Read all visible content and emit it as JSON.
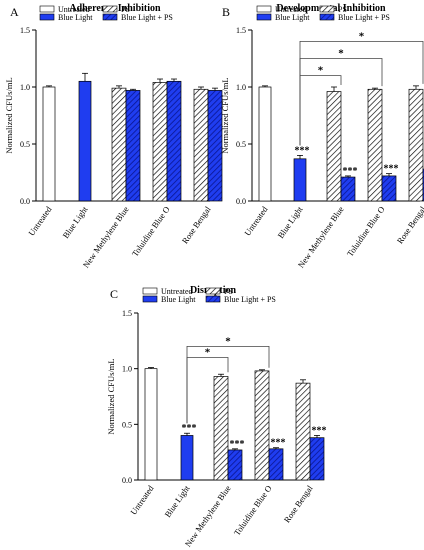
{
  "legend_labels": {
    "untreated": "Untreated",
    "ps": "PS",
    "blue_light": "Blue Light",
    "blue_light_ps": "Blue Light + PS"
  },
  "colors": {
    "untreated_fill": "#ffffff",
    "blue_fill": "#1f3df0",
    "dark_blue": "#0d1fa8",
    "stroke": "#000000"
  },
  "chart_data": [
    {
      "panel_label": "A",
      "type": "bar",
      "title": "Adherence Inhibition",
      "ylabel": "Normalized CFUs/mL",
      "ylim": [
        0,
        1.5
      ],
      "yticks": [
        "0.0",
        "0.5",
        "1.0",
        "1.5"
      ],
      "categories": [
        "Untreated",
        "Blue Light",
        "New Methylene Blue",
        "Toluidine Blue O",
        "Rose Bengal"
      ],
      "series": [
        {
          "name": "Untreated",
          "values": [
            1.0,
            null,
            null,
            null,
            null
          ],
          "errors": [
            0.01,
            null,
            null,
            null,
            null
          ]
        },
        {
          "name": "Blue Light",
          "values": [
            null,
            1.05,
            null,
            null,
            null
          ],
          "errors": [
            null,
            0.07,
            null,
            null,
            null
          ]
        },
        {
          "name": "PS",
          "values": [
            null,
            null,
            0.99,
            1.04,
            0.98
          ],
          "errors": [
            null,
            null,
            0.02,
            0.03,
            0.02
          ]
        },
        {
          "name": "Blue Light + PS",
          "values": [
            null,
            null,
            0.97,
            1.05,
            0.97
          ],
          "errors": [
            null,
            null,
            0.01,
            0.02,
            0.02
          ]
        }
      ],
      "stars": [],
      "brackets": []
    },
    {
      "panel_label": "B",
      "type": "bar",
      "title": "Developmental Inhibition",
      "ylabel": "Normalized CFUs/mL",
      "ylim": [
        0,
        1.5
      ],
      "yticks": [
        "0.0",
        "0.5",
        "1.0",
        "1.5"
      ],
      "categories": [
        "Untreated",
        "Blue Light",
        "New Methylene Blue",
        "Toluidine Blue O",
        "Rose Bengal"
      ],
      "series": [
        {
          "name": "Untreated",
          "values": [
            1.0,
            null,
            null,
            null,
            null
          ],
          "errors": [
            0.01,
            null,
            null,
            null,
            null
          ]
        },
        {
          "name": "Blue Light",
          "values": [
            null,
            0.37,
            null,
            null,
            null
          ],
          "errors": [
            null,
            0.03,
            null,
            null,
            null
          ]
        },
        {
          "name": "PS",
          "values": [
            null,
            null,
            0.96,
            0.98,
            0.98
          ],
          "errors": [
            null,
            null,
            0.04,
            0.01,
            0.03
          ]
        },
        {
          "name": "Blue Light + PS",
          "values": [
            null,
            null,
            0.21,
            0.22,
            0.28
          ],
          "errors": [
            null,
            null,
            0.01,
            0.02,
            0.02
          ]
        }
      ],
      "stars": [
        {
          "category": "Blue Light",
          "series": "Blue Light",
          "text": "***"
        },
        {
          "category": "New Methylene Blue",
          "series": "Blue Light + PS",
          "text": "***"
        },
        {
          "category": "Toluidine Blue O",
          "series": "Blue Light + PS",
          "text": "***"
        },
        {
          "category": "Rose Bengal",
          "series": "Blue Light + PS",
          "text": "***"
        }
      ],
      "brackets": [
        {
          "from": "Blue Light",
          "to": "New Methylene Blue",
          "at": 1.1,
          "text": "*"
        },
        {
          "from": "Blue Light",
          "to": "Toluidine Blue O",
          "at": 1.25,
          "text": "*"
        },
        {
          "from": "Blue Light",
          "to": "Rose Bengal",
          "at": 1.4,
          "text": "*"
        }
      ]
    },
    {
      "panel_label": "C",
      "type": "bar",
      "title": "Disruption",
      "ylabel": "Normalized CFUs/mL",
      "ylim": [
        0,
        1.5
      ],
      "yticks": [
        "0.0",
        "0.5",
        "1.0",
        "1.5"
      ],
      "categories": [
        "Untreated",
        "Blue Light",
        "New Methylene Blue",
        "Toluidine Blue O",
        "Rose Bengal"
      ],
      "series": [
        {
          "name": "Untreated",
          "values": [
            1.0,
            null,
            null,
            null,
            null
          ],
          "errors": [
            0.01,
            null,
            null,
            null,
            null
          ]
        },
        {
          "name": "Blue Light",
          "values": [
            null,
            0.4,
            null,
            null,
            null
          ],
          "errors": [
            null,
            0.02,
            null,
            null,
            null
          ]
        },
        {
          "name": "PS",
          "values": [
            null,
            null,
            0.93,
            0.98,
            0.87
          ],
          "errors": [
            null,
            null,
            0.02,
            0.01,
            0.03
          ]
        },
        {
          "name": "Blue Light + PS",
          "values": [
            null,
            null,
            0.27,
            0.28,
            0.38
          ],
          "errors": [
            null,
            null,
            0.01,
            0.01,
            0.02
          ]
        }
      ],
      "stars": [
        {
          "category": "Blue Light",
          "series": "Blue Light",
          "text": "***"
        },
        {
          "category": "New Methylene Blue",
          "series": "Blue Light + PS",
          "text": "***"
        },
        {
          "category": "Toluidine Blue O",
          "series": "Blue Light + PS",
          "text": "***"
        },
        {
          "category": "Rose Bengal",
          "series": "Blue Light + PS",
          "text": "***"
        }
      ],
      "brackets": [
        {
          "from": "Blue Light",
          "to": "New Methylene Blue",
          "at": 1.1,
          "text": "*"
        },
        {
          "from": "Blue Light",
          "to": "Toluidine Blue O",
          "at": 1.2,
          "text": "*"
        }
      ]
    }
  ]
}
